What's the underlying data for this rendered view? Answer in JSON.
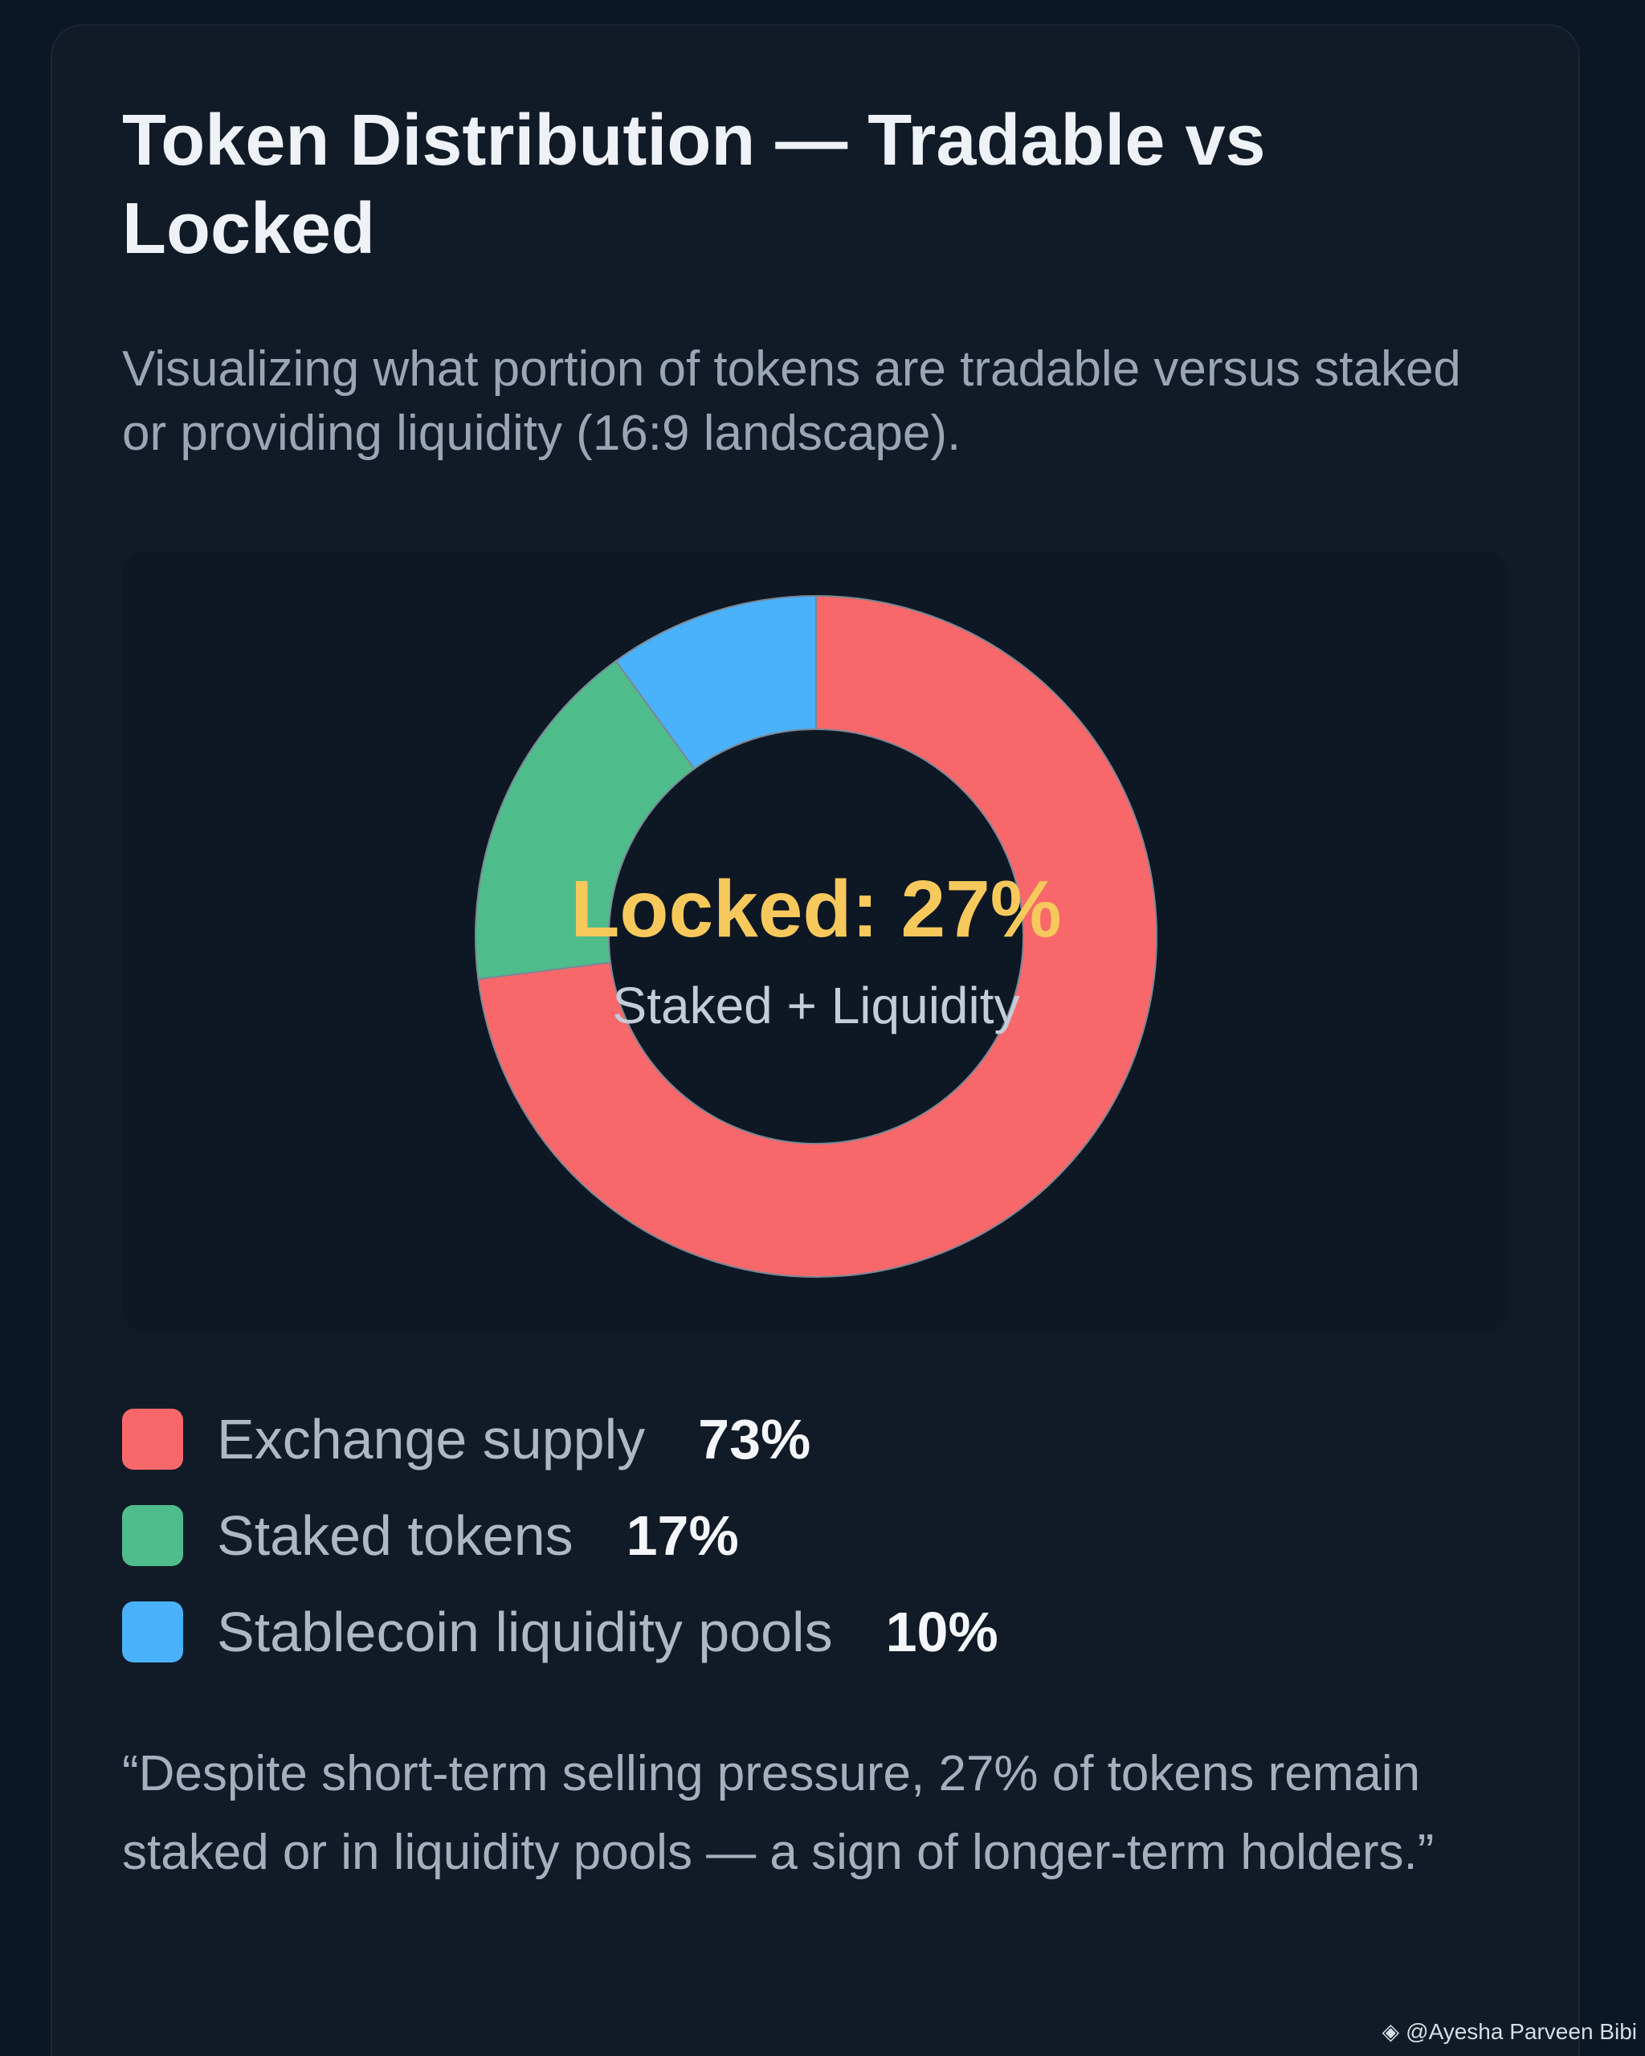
{
  "header": {
    "title": "Token Distribution — Tradable vs Locked",
    "subtitle": "Visualizing what portion of tokens are tradable versus staked or providing liquidity (16:9 landscape)."
  },
  "chart_data": {
    "type": "pie",
    "donut": true,
    "categories": [
      "Exchange supply",
      "Staked tokens",
      "Stablecoin liquidity pools"
    ],
    "values": [
      73,
      17,
      10
    ],
    "value_labels": [
      "73%",
      "17%",
      "10%"
    ],
    "colors": [
      "#f8686a",
      "#4fbd8b",
      "#4ab1fb"
    ],
    "center_label": "Locked: 27%",
    "center_sublabel": "Staked + Liquidity",
    "legend_placement": "bottom"
  },
  "quote": "“Despite short-term selling pressure, 27% of tokens remain staked or in liquidity pools — a sign of longer-term holders.”",
  "watermark": {
    "icon": "binance-diamond-icon",
    "text": "@Ayesha Parveen Bibi"
  },
  "theme": {
    "background": "#0b1724",
    "card": "#111b27",
    "center_text": "#f7c95c"
  }
}
